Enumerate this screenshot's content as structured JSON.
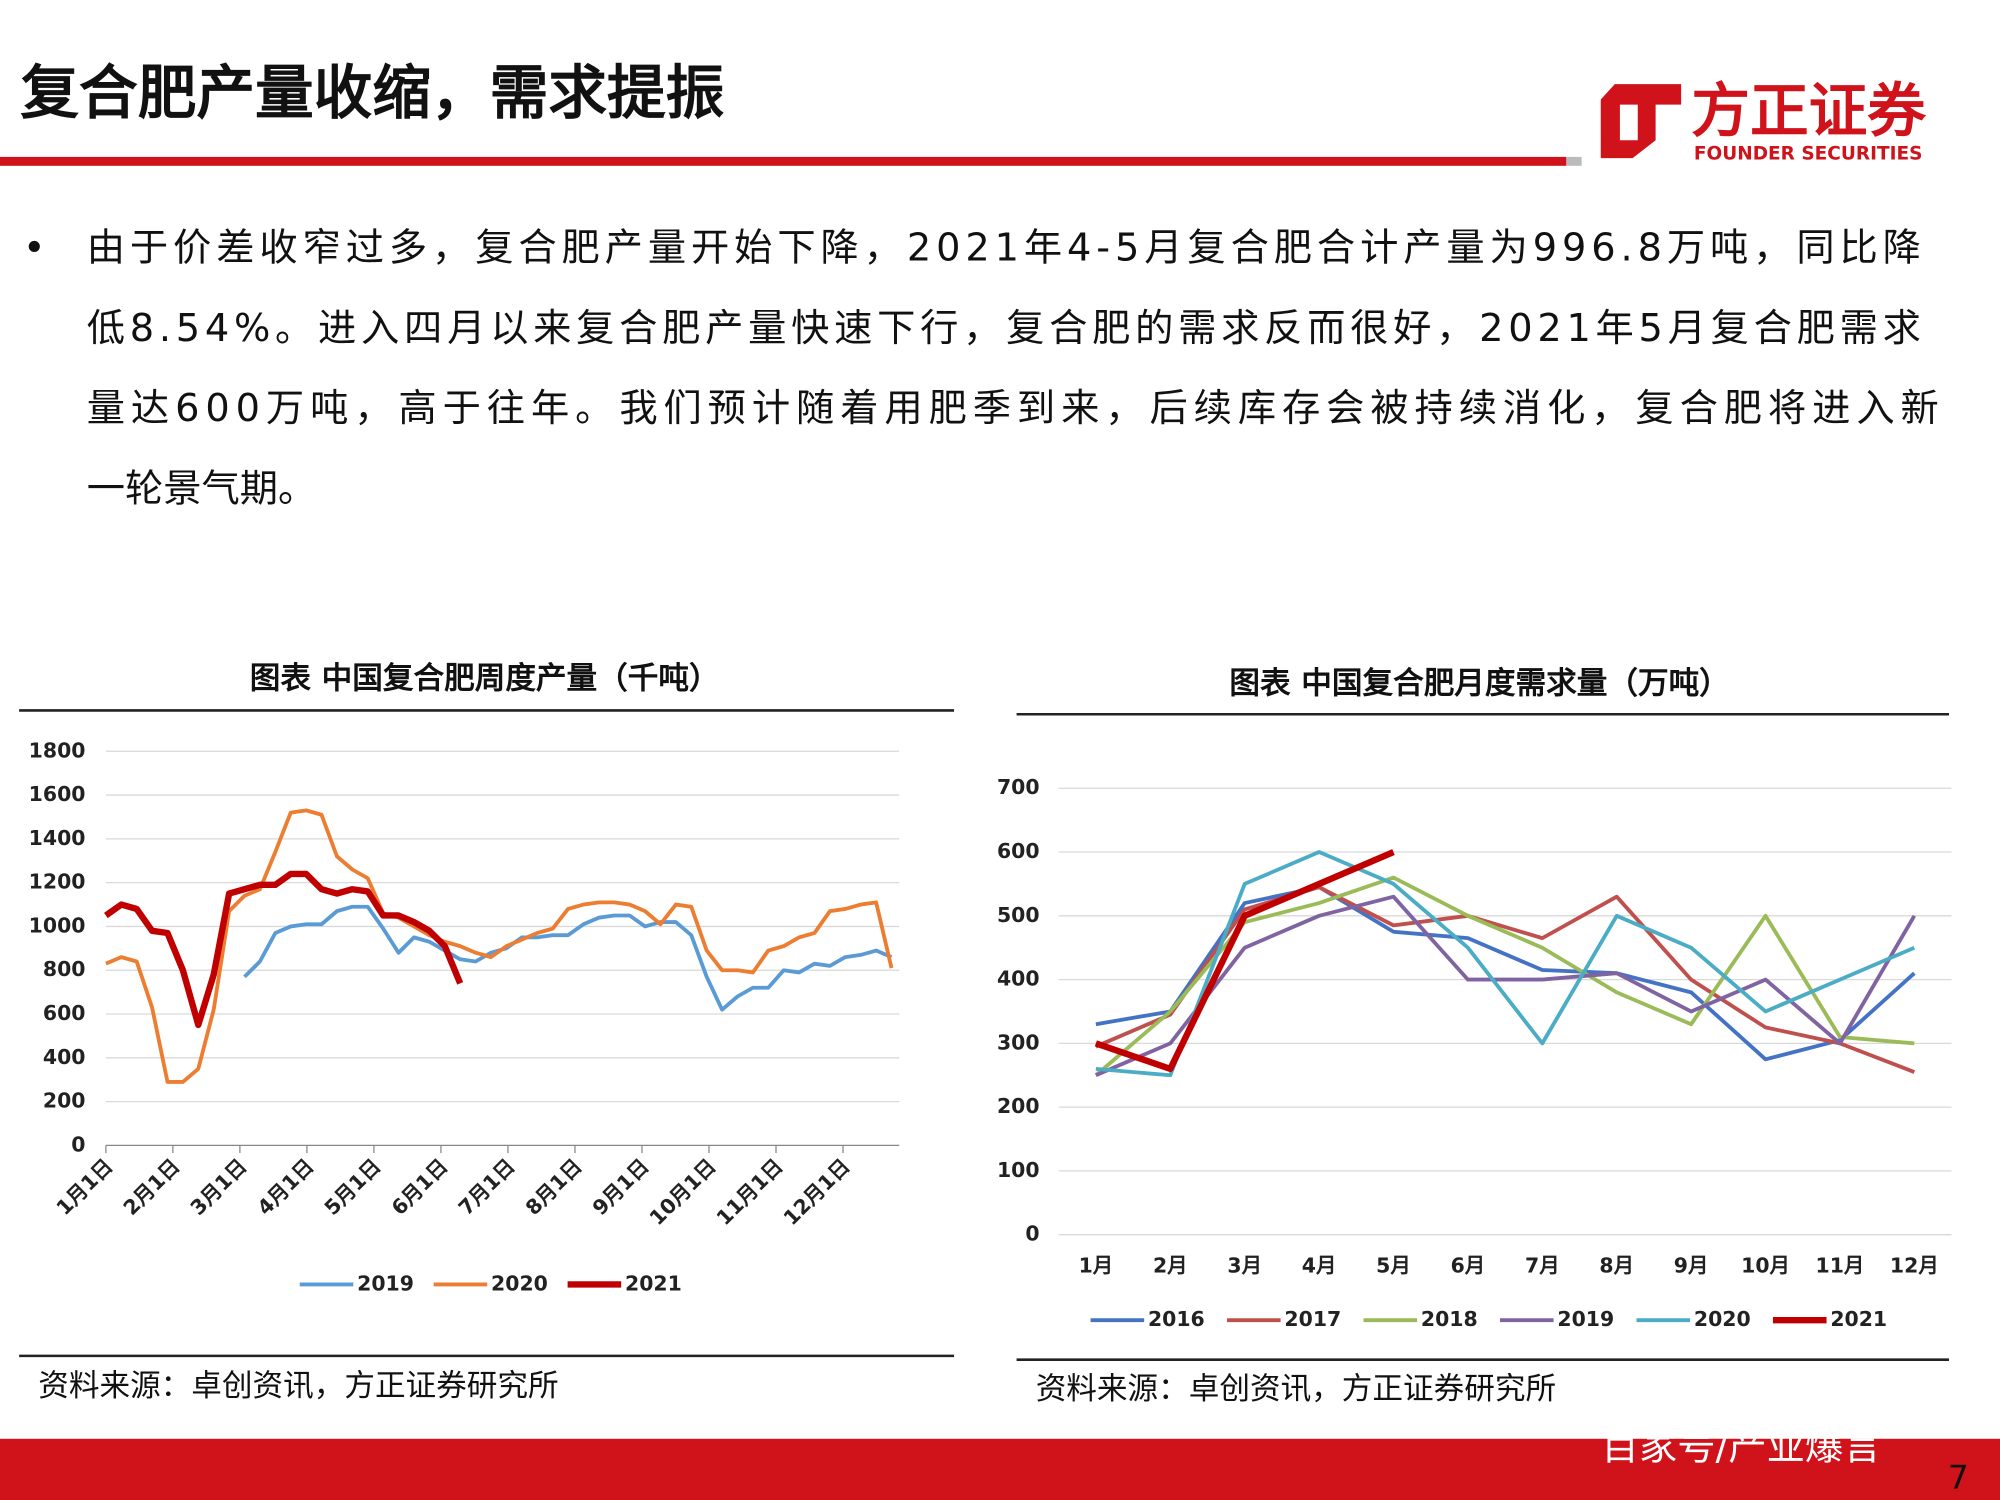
{
  "header": {
    "title": "复合肥产量收缩，需求提振",
    "logo_cn": "方正证券",
    "logo_en": "FOUNDER SECURITIES"
  },
  "body": {
    "bullet": "•",
    "lines": [
      "由于价差收窄过多，复合肥产量开始下降，2021年4-5月复合肥合计产量为996.8万吨，同比降",
      "低8.54%。进入四月以来复合肥产量快速下行，复合肥的需求反而很好，2021年5月复合肥需求",
      "量达600万吨，高于往年。我们预计随着用肥季到来，后续库存会被持续消化，复合肥将进入新",
      "一轮景气期。"
    ]
  },
  "chart_data": [
    {
      "type": "line",
      "title": "图表  中国复合肥周度产量（千吨）",
      "x": [
        1,
        2,
        3,
        4,
        5,
        6,
        7,
        8,
        9,
        10,
        11,
        12,
        13,
        14,
        15,
        16,
        17,
        18,
        19,
        20,
        21,
        22,
        23,
        24,
        25,
        26,
        27,
        28,
        29,
        30,
        31,
        32,
        33,
        34,
        35,
        36,
        37,
        38,
        39,
        40,
        41,
        42,
        43,
        44,
        45,
        46,
        47,
        48,
        49,
        50,
        51,
        52
      ],
      "xlim": [
        1,
        52.5
      ],
      "xticks": [
        {
          "value": 1,
          "label": "1月1日"
        },
        {
          "value": 5.35,
          "label": "2月1日"
        },
        {
          "value": 9.7,
          "label": "3月1日"
        },
        {
          "value": 14.05,
          "label": "4月1日"
        },
        {
          "value": 18.4,
          "label": "5月1日"
        },
        {
          "value": 22.75,
          "label": "6月1日"
        },
        {
          "value": 27.1,
          "label": "7月1日"
        },
        {
          "value": 31.45,
          "label": "8月1日"
        },
        {
          "value": 35.8,
          "label": "9月1日"
        },
        {
          "value": 40.15,
          "label": "10月1日"
        },
        {
          "value": 44.5,
          "label": "11月1日"
        },
        {
          "value": 48.85,
          "label": "12月1日"
        }
      ],
      "ylim": [
        0,
        1800
      ],
      "yticks": [
        0,
        200,
        400,
        600,
        800,
        1000,
        1200,
        1400,
        1600,
        1800
      ],
      "grid": true,
      "legend": "bottom",
      "series": [
        {
          "name": "2019",
          "color": "#5b9bd5",
          "values": [
            null,
            null,
            null,
            null,
            null,
            null,
            null,
            null,
            null,
            770,
            840,
            970,
            1000,
            1010,
            1010,
            1070,
            1090,
            1090,
            990,
            880,
            950,
            930,
            890,
            850,
            840,
            880,
            900,
            950,
            950,
            960,
            960,
            1010,
            1040,
            1050,
            1050,
            1000,
            1020,
            1020,
            960,
            770,
            620,
            680,
            720,
            720,
            800,
            790,
            830,
            820,
            860,
            870,
            890,
            860
          ]
        },
        {
          "name": "2020",
          "color": "#ed7d31",
          "values": [
            830,
            860,
            840,
            630,
            290,
            290,
            350,
            620,
            1070,
            1140,
            1170,
            1340,
            1520,
            1530,
            1510,
            1320,
            1260,
            1220,
            1060,
            1040,
            1000,
            960,
            930,
            910,
            880,
            860,
            910,
            940,
            970,
            990,
            1080,
            1100,
            1110,
            1110,
            1100,
            1070,
            1010,
            1100,
            1090,
            890,
            800,
            800,
            790,
            890,
            910,
            950,
            970,
            1070,
            1080,
            1100,
            1110,
            810
          ]
        },
        {
          "name": "2021",
          "color": "#c00000",
          "values": [
            1050,
            1100,
            1080,
            980,
            970,
            800,
            550,
            780,
            1150,
            1170,
            1190,
            1190,
            1240,
            1240,
            1170,
            1150,
            1170,
            1160,
            1050,
            1050,
            1020,
            980,
            910,
            740,
            null,
            null,
            null,
            null,
            null,
            null,
            null,
            null,
            null,
            null,
            null,
            null,
            null,
            null,
            null,
            null,
            null,
            null,
            null,
            null,
            null,
            null,
            null,
            null,
            null,
            null,
            null,
            null
          ]
        }
      ]
    },
    {
      "type": "line",
      "title": "图表 中国复合肥月度需求量（万吨）",
      "categories": [
        "1月",
        "2月",
        "3月",
        "4月",
        "5月",
        "6月",
        "7月",
        "8月",
        "9月",
        "10月",
        "11月",
        "12月"
      ],
      "ylim": [
        0,
        700
      ],
      "yticks": [
        0,
        100,
        200,
        300,
        400,
        500,
        600,
        700
      ],
      "grid": true,
      "legend": "bottom",
      "series": [
        {
          "name": "2016",
          "color": "#4472c4",
          "values": [
            330,
            350,
            520,
            545,
            475,
            465,
            415,
            410,
            380,
            275,
            305,
            410
          ]
        },
        {
          "name": "2017",
          "color": "#c0504d",
          "values": [
            295,
            345,
            510,
            545,
            485,
            500,
            465,
            530,
            400,
            325,
            300,
            255
          ]
        },
        {
          "name": "2018",
          "color": "#9bbb59",
          "values": [
            250,
            350,
            490,
            520,
            560,
            500,
            450,
            380,
            330,
            500,
            310,
            300
          ]
        },
        {
          "name": "2019",
          "color": "#8064a2",
          "values": [
            250,
            300,
            450,
            500,
            530,
            400,
            400,
            410,
            350,
            400,
            300,
            500
          ]
        },
        {
          "name": "2020",
          "color": "#4bacc6",
          "values": [
            260,
            250,
            550,
            600,
            550,
            450,
            300,
            500,
            450,
            350,
            400,
            450
          ]
        },
        {
          "name": "2021",
          "color": "#c00000",
          "values": [
            300,
            260,
            500,
            550,
            600,
            null,
            null,
            null,
            null,
            null,
            null,
            null
          ]
        }
      ]
    }
  ],
  "sources": [
    "资料来源：卓创资讯，方正证券研究所",
    "资料来源：卓创资讯，方正证券研究所"
  ],
  "footer": {
    "watermark": "百家号/产业爆言",
    "page": 7
  }
}
